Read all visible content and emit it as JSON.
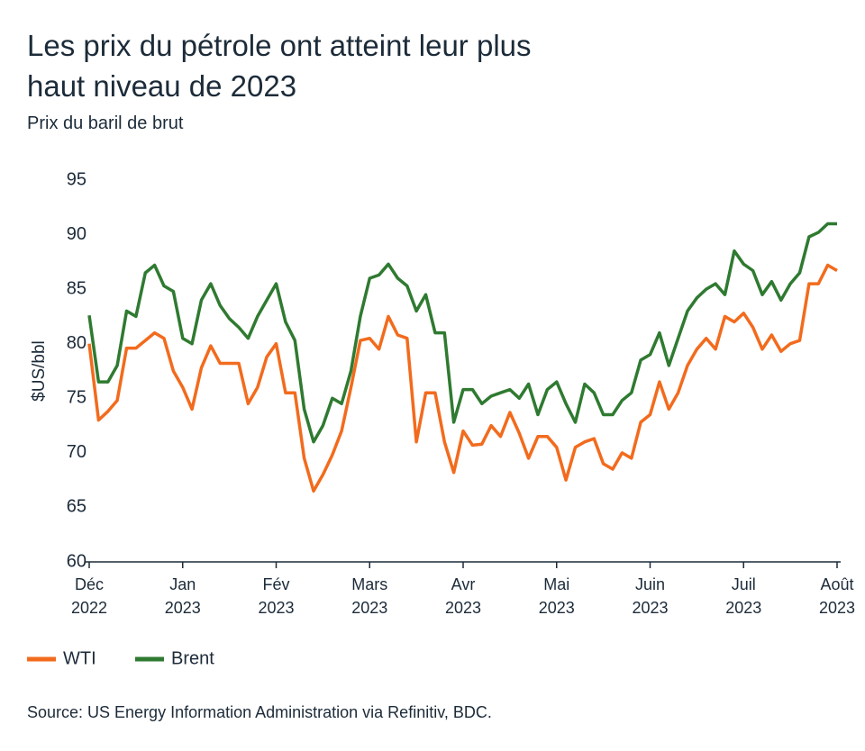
{
  "chart_data": {
    "type": "line",
    "title": "Les prix du pétrole ont atteint leur plus haut niveau de 2023",
    "subtitle": "Prix du baril de brut",
    "y_label": "$US/bbl",
    "source": "Source: US Energy Information Administration via Refinitiv, BDC.",
    "categories": [
      "Déc\n2022",
      null,
      null,
      null,
      null,
      null,
      null,
      null,
      null,
      null,
      "Jan\n2023",
      null,
      null,
      null,
      null,
      null,
      null,
      null,
      null,
      null,
      "Fév\n2023",
      null,
      null,
      null,
      null,
      null,
      null,
      null,
      null,
      null,
      "Mars\n2023",
      null,
      null,
      null,
      null,
      null,
      null,
      null,
      null,
      null,
      "Avr\n2023",
      null,
      null,
      null,
      null,
      null,
      null,
      null,
      null,
      null,
      "Mai\n2023",
      null,
      null,
      null,
      null,
      null,
      null,
      null,
      null,
      null,
      "Juin\n2023",
      null,
      null,
      null,
      null,
      null,
      null,
      null,
      null,
      null,
      "Juil\n2023",
      null,
      null,
      null,
      null,
      null,
      null,
      null,
      null,
      null,
      "Août\n2023"
    ],
    "series": [
      {
        "name": "WTI",
        "color": "#f26b1d",
        "values": [
          80,
          73,
          73.8,
          74.8,
          79.6,
          79.6,
          80.3,
          81,
          80.5,
          77.5,
          76,
          74,
          77.8,
          79.8,
          78.2,
          78.2,
          78.2,
          74.5,
          76,
          78.8,
          80,
          75.5,
          75.5,
          69.5,
          66.5,
          68,
          69.8,
          72,
          76,
          80.3,
          80.5,
          79.5,
          82.5,
          80.8,
          80.5,
          71,
          75.5,
          75.5,
          71,
          68.2,
          72,
          70.7,
          70.8,
          72.5,
          71.5,
          73.7,
          71.8,
          69.5,
          71.5,
          71.5,
          70.5,
          67.5,
          70.5,
          71,
          71.3,
          69,
          68.5,
          70,
          69.5,
          72.8,
          73.5,
          76.5,
          74,
          75.5,
          78,
          79.5,
          80.5,
          79.5,
          82.5,
          82,
          82.8,
          81.5,
          79.5,
          80.8,
          79.3,
          80,
          80.3,
          85.5,
          85.5,
          87.2,
          86.7
        ]
      },
      {
        "name": "Brent",
        "color": "#2f7a31",
        "values": [
          82.6,
          76.5,
          76.5,
          78,
          83,
          82.5,
          86.5,
          87.2,
          85.3,
          84.8,
          80.5,
          80,
          84,
          85.5,
          83.5,
          82.3,
          81.5,
          80.5,
          82.5,
          84,
          85.5,
          82,
          80.3,
          74,
          71,
          72.5,
          75,
          74.5,
          77.5,
          82.5,
          86,
          86.3,
          87.3,
          86,
          85.3,
          83,
          84.5,
          81,
          81,
          72.8,
          75.8,
          75.8,
          74.5,
          75.2,
          75.5,
          75.8,
          75,
          76.3,
          73.5,
          75.8,
          76.5,
          74.5,
          72.8,
          76.3,
          75.5,
          73.5,
          73.5,
          74.8,
          75.5,
          78.5,
          79,
          81,
          78,
          80.5,
          83,
          84.2,
          85,
          85.5,
          84.5,
          88.5,
          87.3,
          86.7,
          84.5,
          85.7,
          84,
          85.5,
          86.5,
          89.8,
          90.2,
          91,
          91
        ]
      }
    ],
    "ylim": [
      60,
      95
    ],
    "yticks": [
      60,
      65,
      70,
      75,
      80,
      85,
      90,
      95
    ],
    "grid": false
  }
}
